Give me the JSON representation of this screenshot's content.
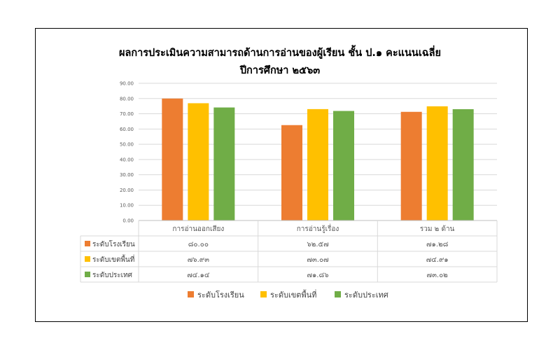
{
  "chart_data": {
    "type": "bar",
    "title": "ผลการประเมินความสามารถด้านการอ่านของผู้เรียน  ชั้น ป.๑ คะแนนเฉลี่ย",
    "subtitle": "ปีการศึกษา ๒๕๖๓",
    "categories": [
      "การอ่านออกเสียง",
      "การอ่านรู้เรื่อง",
      "รวม ๒ ด้าน"
    ],
    "ylim": [
      0,
      90
    ],
    "yticks": [
      "0.00",
      "10.00",
      "20.00",
      "30.00",
      "40.00",
      "50.00",
      "60.00",
      "70.00",
      "80.00",
      "90.00"
    ],
    "grid": true,
    "legend": "bottom",
    "series": [
      {
        "name": "ระดับโรงเรียน",
        "color": "#ED7D31",
        "values": [
          80.0,
          62.57,
          71.28
        ],
        "labels": [
          "๘๐.๐๐",
          "๖๒.๕๗",
          "๗๑.๒๘"
        ]
      },
      {
        "name": "ระดับเขตพื้นที่",
        "color": "#FFC000",
        "values": [
          76.93,
          73.07,
          74.91
        ],
        "labels": [
          "๗๖.๙๓",
          "๗๓.๐๗",
          "๗๔.๙๑"
        ]
      },
      {
        "name": "ระดับประเทศ",
        "color": "#70AD47",
        "values": [
          74.14,
          71.86,
          73.02
        ],
        "labels": [
          "๗๔.๑๔",
          "๗๑.๘๖",
          "๗๓.๐๒"
        ]
      }
    ]
  }
}
